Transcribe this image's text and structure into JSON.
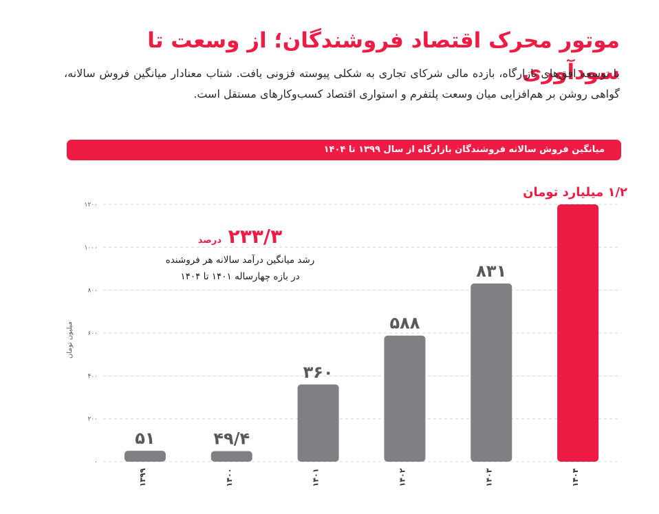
{
  "header": {
    "title": "موتور محرک اقتصاد فروشندگان؛ از وسعت تا سودآوری",
    "intro": "با توسعه افق‌های بازارگاه، بازده مالی شرکای تجاری به شکلی پیوسته فزونی یافت. شتاب معنادار میانگین فروش سالانه، گواهی روشن بر هم‌افزایی میان وسعت پلتفرم و استواری اقتصاد کسب‌وکارهای مستقل است."
  },
  "banner": {
    "text": "میانگین فروش سالانه فروشندگان بازارگاه از سال ۱۳۹۹ تا ۱۴۰۴"
  },
  "annotation": {
    "value": "۲۳۳/۳",
    "unit": "درصد",
    "line1": "رشد میانگین درآمد سالانه هر فروشنده",
    "line2": "در بازه چهارساله ۱۴۰۱ تا ۱۴۰۴"
  },
  "colors": {
    "accent": "#ee1b45",
    "bar": "#7f8084",
    "grid": "#d9d9d9",
    "label": "#555555"
  },
  "chart_data": {
    "type": "bar",
    "title": "میانگین فروش سالانه فروشندگان بازارگاه از سال ۱۳۹۹ تا ۱۴۰۴",
    "ylabel": "میلیون تومان",
    "xlabel": "",
    "ylim": [
      0,
      1200
    ],
    "grid": true,
    "yticks": [
      0,
      200,
      400,
      600,
      800,
      1000,
      1200
    ],
    "ytick_labels": [
      "۰",
      "۲۰۰",
      "۴۰۰",
      "۶۰۰",
      "۸۰۰",
      "۱۰۰۰",
      "۱۲۰۰"
    ],
    "categories": [
      "۱۳۹۹",
      "۱۴۰۰",
      "۱۴۰۱",
      "۱۴۰۲",
      "۱۴۰۳",
      "۱۴۰۴"
    ],
    "values": [
      51,
      49.4,
      360,
      588,
      831,
      1200
    ],
    "value_labels": [
      "۵۱",
      "۴۹/۴",
      "۳۶۰",
      "۵۸۸",
      "۸۳۱",
      "۱/۲ میلیارد تومان"
    ],
    "highlight": [
      false,
      false,
      false,
      false,
      false,
      true
    ]
  }
}
